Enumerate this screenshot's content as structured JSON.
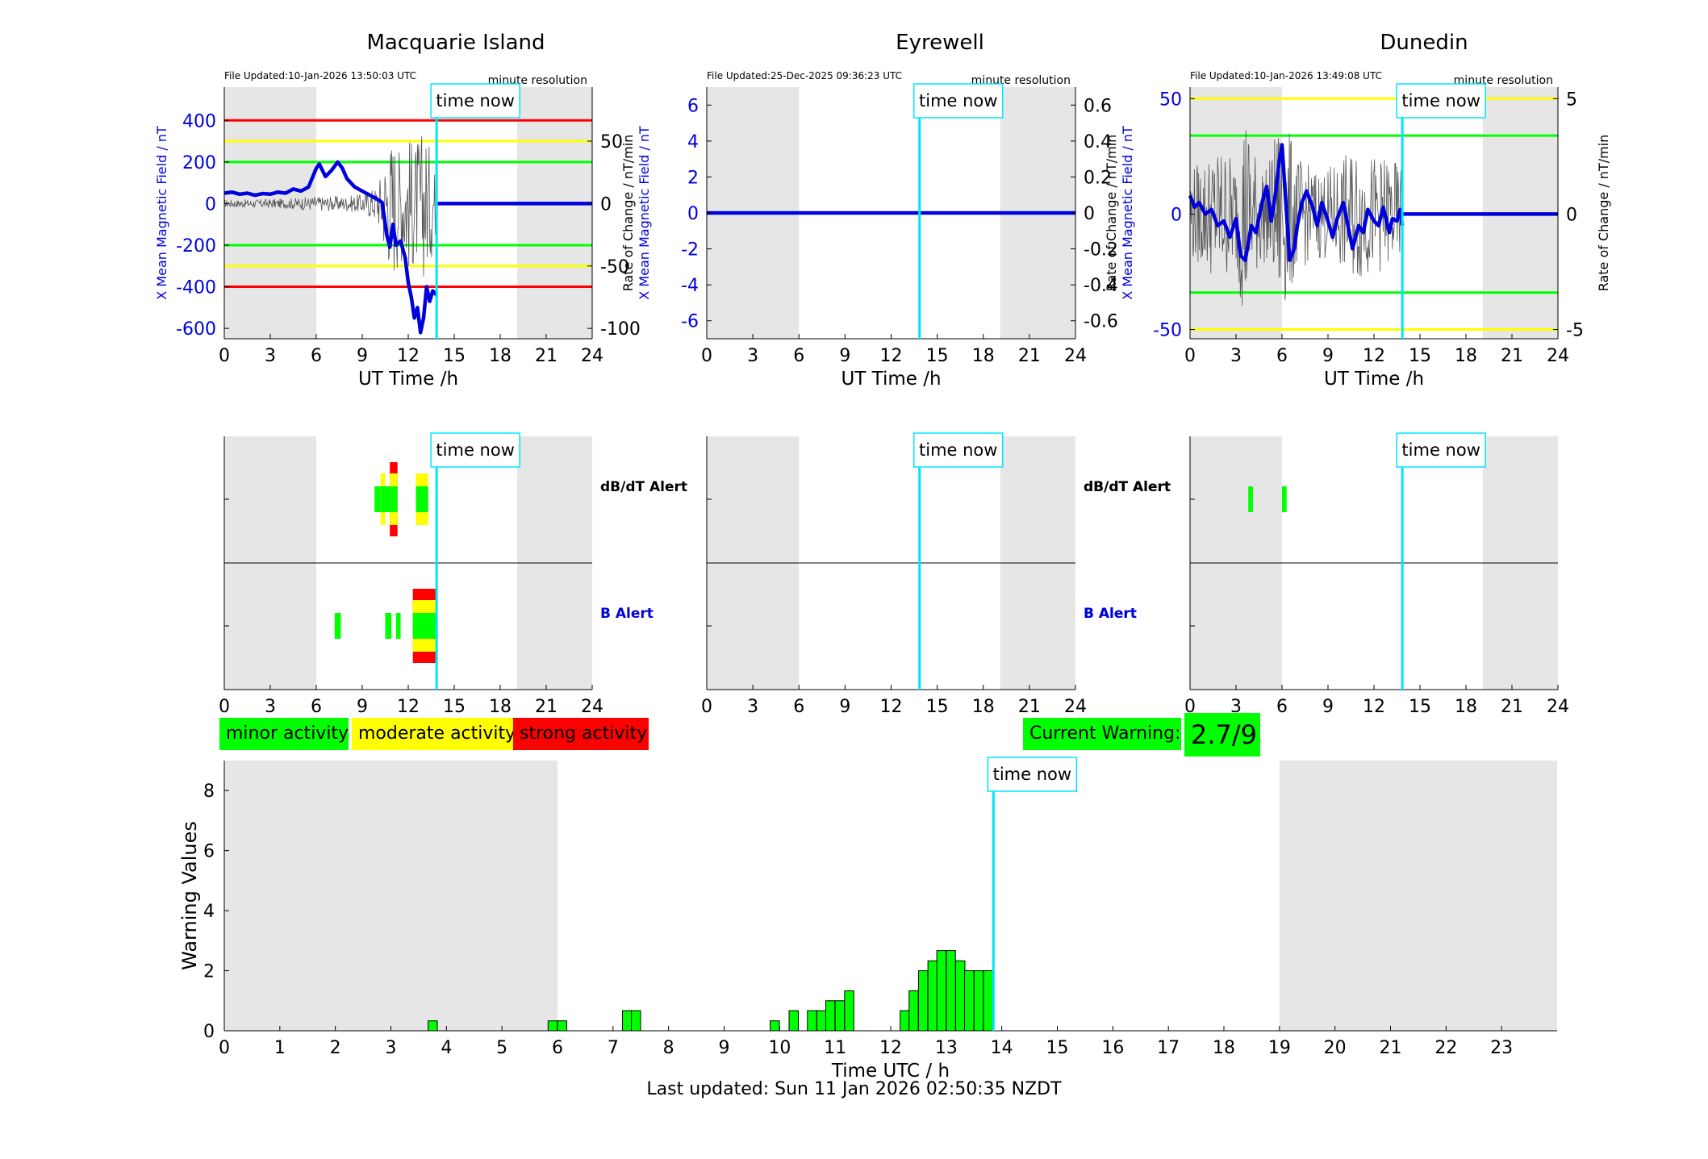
{
  "stations": [
    {
      "name": "Macquarie Island",
      "file_updated": "File Updated:10-Jan-2026 13:50:03 UTC",
      "resolution": "minute resolution",
      "left_ylabel": "X Mean Magnetic Field / nT",
      "right_ylabel": "Rate of Change / nT/min",
      "left_ticks": [
        400,
        200,
        0,
        -200,
        -400,
        -600
      ],
      "right_ticks": [
        50,
        0,
        -50,
        -100
      ],
      "left_ylim": [
        -650,
        560
      ],
      "right_ylim": [
        -108.3,
        93.3
      ],
      "thresholds": [
        {
          "value": 400,
          "color": "#ff0000"
        },
        {
          "value": 300,
          "color": "#ffff00"
        },
        {
          "value": 200,
          "color": "#00ff00"
        },
        {
          "value": -200,
          "color": "#00ff00"
        },
        {
          "value": -300,
          "color": "#ffff00"
        },
        {
          "value": -400,
          "color": "#ff0000"
        }
      ],
      "field_series": {
        "name": "X Mean Magnetic Field",
        "points": [
          [
            0,
            50
          ],
          [
            0.5,
            55
          ],
          [
            1,
            45
          ],
          [
            1.5,
            50
          ],
          [
            2,
            40
          ],
          [
            2.5,
            48
          ],
          [
            3,
            45
          ],
          [
            3.5,
            55
          ],
          [
            4,
            50
          ],
          [
            4.5,
            70
          ],
          [
            5,
            60
          ],
          [
            5.5,
            80
          ],
          [
            6,
            170
          ],
          [
            6.2,
            190
          ],
          [
            6.6,
            130
          ],
          [
            7,
            160
          ],
          [
            7.4,
            200
          ],
          [
            7.7,
            170
          ],
          [
            8,
            120
          ],
          [
            8.5,
            80
          ],
          [
            9,
            60
          ],
          [
            9.5,
            40
          ],
          [
            10,
            20
          ],
          [
            10.3,
            5
          ],
          [
            10.6,
            -150
          ],
          [
            10.8,
            -210
          ],
          [
            11,
            -100
          ],
          [
            11.2,
            -200
          ],
          [
            11.5,
            -180
          ],
          [
            11.8,
            -260
          ],
          [
            12,
            -380
          ],
          [
            12.2,
            -450
          ],
          [
            12.4,
            -550
          ],
          [
            12.6,
            -500
          ],
          [
            12.8,
            -620
          ],
          [
            13,
            -550
          ],
          [
            13.2,
            -400
          ],
          [
            13.4,
            -470
          ],
          [
            13.6,
            -420
          ],
          [
            13.85,
            -440
          ]
        ],
        "flat_after": [
          13.85,
          24,
          0
        ]
      },
      "rate_series": {
        "name": "Rate of Change",
        "amplitude_points": [
          [
            0,
            3
          ],
          [
            4,
            4
          ],
          [
            6,
            6
          ],
          [
            8,
            6
          ],
          [
            9,
            8
          ],
          [
            10,
            15
          ],
          [
            10.5,
            40
          ],
          [
            11,
            60
          ],
          [
            11.5,
            45
          ],
          [
            12,
            55
          ],
          [
            12.5,
            50
          ],
          [
            13,
            60
          ],
          [
            13.5,
            45
          ],
          [
            13.85,
            20
          ]
        ]
      },
      "dbdt_bars": [
        {
          "start": 9.8,
          "end": 10.2,
          "level": "minor"
        },
        {
          "start": 10.2,
          "end": 10.5,
          "level": "moderate"
        },
        {
          "start": 10.5,
          "end": 10.8,
          "level": "minor"
        },
        {
          "start": 10.8,
          "end": 11.3,
          "level": "strong"
        },
        {
          "start": 12.5,
          "end": 13.3,
          "level": "moderate"
        }
      ],
      "b_bars": [
        {
          "start": 7.2,
          "end": 7.6,
          "level": "minor"
        },
        {
          "start": 10.5,
          "end": 10.9,
          "level": "minor"
        },
        {
          "start": 11.2,
          "end": 11.5,
          "level": "minor"
        },
        {
          "start": 12.3,
          "end": 13.9,
          "level": "strong"
        }
      ]
    },
    {
      "name": "Eyrewell",
      "file_updated": "File Updated:25-Dec-2025 09:36:23 UTC",
      "resolution": "minute resolution",
      "left_ylabel": "X Mean Magnetic Field / nT",
      "right_ylabel": "Rate of Change / nT/min",
      "left_ticks": [
        6,
        4,
        2,
        0,
        -2,
        -4,
        -6
      ],
      "right_ticks": [
        "0.6",
        "0.4",
        "0.2",
        "0",
        "-0.2",
        "-0.4",
        "-0.6"
      ],
      "left_ylim": [
        -7,
        7
      ],
      "right_ylim": [
        -0.7,
        0.7
      ],
      "thresholds": [],
      "field_series": {
        "name": "X Mean Magnetic Field",
        "points": [
          [
            0,
            0
          ],
          [
            24,
            0
          ]
        ],
        "flat_after": null
      },
      "rate_series": null,
      "dbdt_bars": [],
      "b_bars": []
    },
    {
      "name": "Dunedin",
      "file_updated": "File Updated:10-Jan-2026 13:49:08 UTC",
      "resolution": "minute resolution",
      "left_ylabel": "X Mean Magnetic Field / nT",
      "right_ylabel": "Rate of Change / nT/min",
      "left_ticks": [
        50,
        0,
        -50
      ],
      "right_ticks": [
        5,
        0,
        -5
      ],
      "left_ylim": [
        -54,
        55
      ],
      "right_ylim": [
        -5.4,
        5.5
      ],
      "thresholds": [
        {
          "value": 50,
          "color": "#ffff00"
        },
        {
          "value": 34,
          "color": "#00ff00"
        },
        {
          "value": -34,
          "color": "#00ff00"
        },
        {
          "value": -50,
          "color": "#ffff00"
        }
      ],
      "field_series": {
        "name": "X Mean Magnetic Field",
        "points": [
          [
            0,
            8
          ],
          [
            0.3,
            3
          ],
          [
            0.6,
            5
          ],
          [
            1,
            0
          ],
          [
            1.4,
            2
          ],
          [
            1.8,
            -5
          ],
          [
            2.2,
            -3
          ],
          [
            2.6,
            -10
          ],
          [
            3,
            -2
          ],
          [
            3.3,
            -18
          ],
          [
            3.6,
            -20
          ],
          [
            4,
            -5
          ],
          [
            4.3,
            -8
          ],
          [
            4.7,
            5
          ],
          [
            5,
            12
          ],
          [
            5.3,
            -3
          ],
          [
            5.6,
            10
          ],
          [
            5.8,
            22
          ],
          [
            6,
            30
          ],
          [
            6.2,
            10
          ],
          [
            6.5,
            -20
          ],
          [
            6.8,
            -15
          ],
          [
            7,
            -5
          ],
          [
            7.3,
            5
          ],
          [
            7.6,
            10
          ],
          [
            8,
            3
          ],
          [
            8.3,
            -5
          ],
          [
            8.6,
            5
          ],
          [
            9,
            -3
          ],
          [
            9.3,
            -10
          ],
          [
            9.6,
            -2
          ],
          [
            10,
            5
          ],
          [
            10.3,
            -5
          ],
          [
            10.6,
            -15
          ],
          [
            11,
            -5
          ],
          [
            11.3,
            -8
          ],
          [
            11.6,
            2
          ],
          [
            12,
            -3
          ],
          [
            12.3,
            -5
          ],
          [
            12.6,
            3
          ],
          [
            13,
            -8
          ],
          [
            13.2,
            -2
          ],
          [
            13.5,
            -3
          ],
          [
            13.7,
            2
          ],
          [
            13.85,
            -5
          ]
        ],
        "flat_after": [
          13.85,
          24,
          0
        ]
      },
      "rate_series": {
        "name": "Rate of Change",
        "amplitude_points": [
          [
            0,
            2
          ],
          [
            1,
            2.5
          ],
          [
            2,
            3
          ],
          [
            3,
            2.5
          ],
          [
            3.6,
            5
          ],
          [
            4,
            3
          ],
          [
            5,
            2
          ],
          [
            6,
            4.5
          ],
          [
            7,
            2.5
          ],
          [
            8,
            2
          ],
          [
            9,
            2
          ],
          [
            10,
            2.5
          ],
          [
            11,
            3
          ],
          [
            12,
            2.5
          ],
          [
            13,
            2.5
          ],
          [
            13.85,
            2
          ]
        ]
      },
      "dbdt_bars": [
        {
          "start": 3.8,
          "end": 4.1,
          "level": "minor"
        },
        {
          "start": 6.0,
          "end": 6.3,
          "level": "minor"
        }
      ],
      "b_bars": []
    }
  ],
  "common": {
    "xlabel": "UT Time /h",
    "xticks": [
      0,
      3,
      6,
      9,
      12,
      15,
      18,
      21,
      24
    ],
    "xlim": [
      0,
      24
    ],
    "time_now": 13.85,
    "time_now_label": "time now",
    "night_shading": [
      [
        0,
        6
      ],
      [
        19.1,
        24
      ]
    ],
    "dbdt_label": "dB/dT Alert",
    "b_label": "B Alert"
  },
  "legend": {
    "minor": {
      "label": "minor activity",
      "color": "#00ff00"
    },
    "moderate": {
      "label": "moderate activity",
      "color": "#ffff00"
    },
    "strong": {
      "label": "strong activity",
      "color": "#ff0000"
    }
  },
  "current_warning": {
    "label": "Current Warning:",
    "value": "2.7/9",
    "color": "#00ff00"
  },
  "chart_data": {
    "type": "bar",
    "xlabel": "Time UTC / h",
    "ylabel": "Warning Values",
    "xlim": [
      0,
      24
    ],
    "ylim": [
      0,
      9
    ],
    "xticks": [
      0,
      1,
      2,
      3,
      4,
      5,
      6,
      7,
      8,
      9,
      10,
      11,
      12,
      13,
      14,
      15,
      16,
      17,
      18,
      19,
      20,
      21,
      22,
      23
    ],
    "yticks": [
      0,
      2,
      4,
      6,
      8
    ],
    "time_now": 13.85,
    "time_now_label": "time now",
    "night_shading": [
      [
        0,
        6
      ],
      [
        19,
        24
      ]
    ],
    "bar_width": 0.166,
    "bar_color": "#00ff00",
    "x": [
      3.67,
      5.83,
      6.0,
      7.17,
      7.33,
      9.83,
      10.17,
      10.5,
      10.67,
      10.83,
      11.0,
      11.17,
      12.17,
      12.33,
      12.5,
      12.67,
      12.83,
      13.0,
      13.17,
      13.33,
      13.5,
      13.67
    ],
    "values": [
      0.33,
      0.33,
      0.33,
      0.67,
      0.67,
      0.33,
      0.67,
      0.67,
      0.67,
      1.0,
      1.0,
      1.33,
      0.67,
      1.33,
      2.0,
      2.33,
      2.67,
      2.67,
      2.33,
      2.0,
      2.0,
      2.0
    ]
  },
  "footer": "Last updated: Sun 11 Jan 2026 02:50:35 NZDT"
}
